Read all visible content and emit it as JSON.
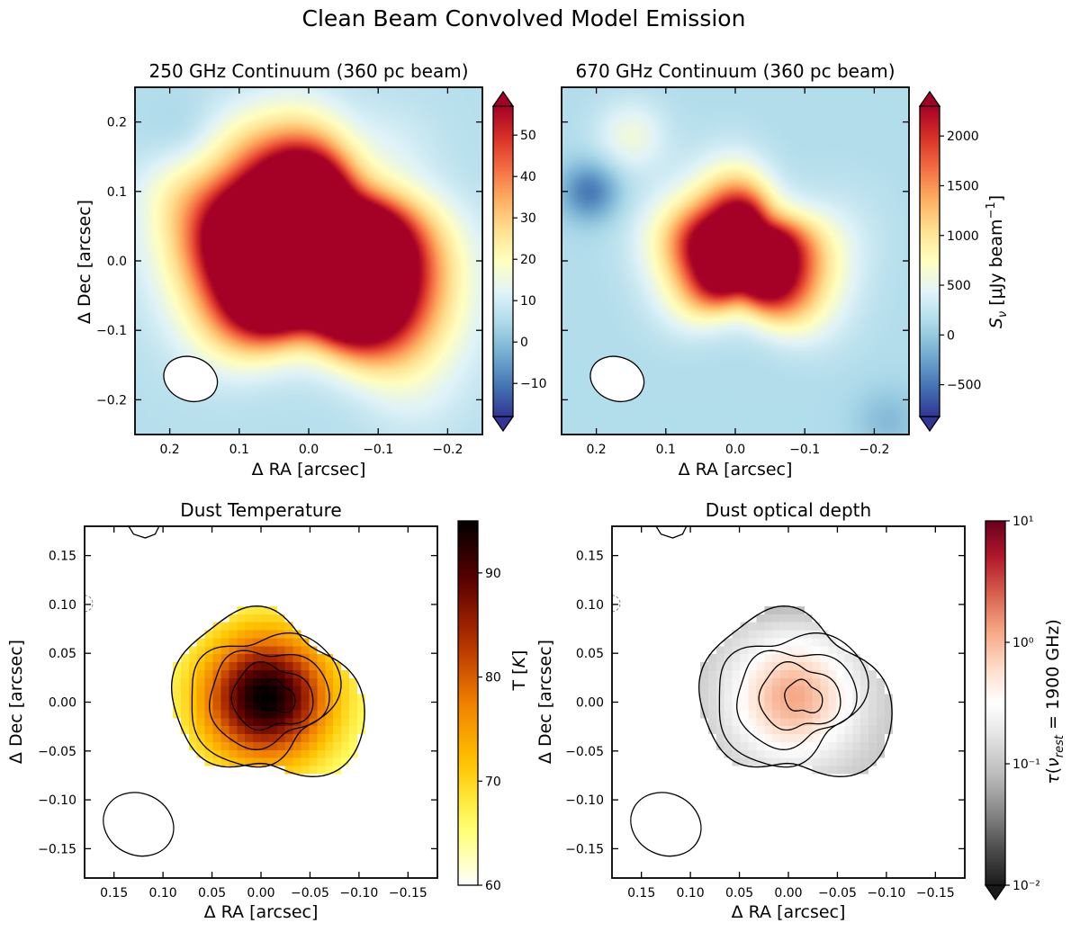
{
  "figure": {
    "suptitle": "Clean Beam Convolved Model Emission"
  },
  "colors": {
    "rdylbu_r": [
      "#313695",
      "#4575b4",
      "#74add1",
      "#abd9e9",
      "#e0f3f8",
      "#ffffbf",
      "#fee090",
      "#fdae61",
      "#f46d43",
      "#d73027",
      "#a50026"
    ],
    "afmhot_r": [
      "#ffffff",
      "#ffff66",
      "#ffc400",
      "#f08000",
      "#b33000",
      "#5c0000",
      "#000000"
    ],
    "rdgy_r": [
      "#1a1a1a",
      "#4d4d4d",
      "#878787",
      "#bababa",
      "#e0e0e0",
      "#ffffff",
      "#fddbc7",
      "#f4a582",
      "#d6604d",
      "#b2182b",
      "#67001f"
    ]
  },
  "chart_data": [
    {
      "type": "heatmap",
      "title": "250 GHz Continuum (360 pc beam)",
      "xlabel": "Δ RA [arcsec]",
      "ylabel": "Δ Dec [arcsec]",
      "xlim": [
        0.25,
        -0.25
      ],
      "ylim": [
        -0.25,
        0.25
      ],
      "xticks": [
        0.2,
        0.1,
        0.0,
        -0.1,
        -0.2
      ],
      "xtick_labels": [
        "0.2",
        "0.1",
        "0.0",
        "−0.1",
        "−0.2"
      ],
      "yticks": [
        0.2,
        0.1,
        0.0,
        -0.1,
        -0.2
      ],
      "ytick_labels": [
        "0.2",
        "0.1",
        "0.0",
        "−0.1",
        "−0.2"
      ],
      "colormap": "RdYlBu_r",
      "vmin": -18,
      "vmax": 57,
      "colorbar_extend": "both",
      "colorbar_ticks": [
        -10,
        0,
        10,
        20,
        30,
        40,
        50
      ],
      "colorbar_tick_labels": [
        "−10",
        "0",
        "10",
        "20",
        "30",
        "40",
        "50"
      ],
      "colorbar_label": "",
      "source": {
        "x": 0.0,
        "y": 0.01,
        "peak": 200,
        "sigma": 0.085,
        "fwhm_scale": 1.0
      },
      "background": 6,
      "blobs": [
        {
          "x": 0.19,
          "y": 0.1,
          "amp": 6,
          "sigma": 0.04
        },
        {
          "x": 0.1,
          "y": 0.17,
          "amp": 5,
          "sigma": 0.04
        },
        {
          "x": -0.12,
          "y": 0.16,
          "amp": 4,
          "sigma": 0.05
        },
        {
          "x": 0.18,
          "y": 0.18,
          "amp": -3,
          "sigma": 0.04
        },
        {
          "x": -0.15,
          "y": -0.2,
          "amp": 3,
          "sigma": 0.05
        }
      ],
      "beam": {
        "x": 0.17,
        "y": -0.17,
        "major_arcsec": 0.075,
        "minor_arcsec": 0.06,
        "angle_deg": -20
      }
    },
    {
      "type": "heatmap",
      "title": "670 GHz Continuum (360 pc beam)",
      "xlabel": "Δ RA [arcsec]",
      "ylabel": "",
      "xlim": [
        0.25,
        -0.25
      ],
      "ylim": [
        -0.25,
        0.25
      ],
      "xticks": [
        0.2,
        0.1,
        0.0,
        -0.1,
        -0.2
      ],
      "xtick_labels": [
        "0.2",
        "0.1",
        "0.0",
        "−0.1",
        "−0.2"
      ],
      "yticks": [
        0.2,
        0.1,
        0.0,
        -0.1,
        -0.2
      ],
      "ytick_labels": [],
      "colormap": "RdYlBu_r",
      "vmin": -820,
      "vmax": 2300,
      "colorbar_extend": "both",
      "colorbar_ticks": [
        -500,
        0,
        500,
        1000,
        1500,
        2000
      ],
      "colorbar_tick_labels": [
        "−500",
        "0",
        "500",
        "1000",
        "1500",
        "2000"
      ],
      "colorbar_label": "S_ν [μJy beam⁻¹]",
      "source": {
        "x": -0.01,
        "y": 0.01,
        "peak": 4200,
        "sigma": 0.06,
        "fwhm_scale": 1.0
      },
      "background": 160,
      "blobs": [
        {
          "x": 0.15,
          "y": 0.18,
          "amp": 420,
          "sigma": 0.035
        },
        {
          "x": 0.21,
          "y": 0.1,
          "amp": -650,
          "sigma": 0.03
        },
        {
          "x": -0.22,
          "y": -0.23,
          "amp": -250,
          "sigma": 0.035
        },
        {
          "x": -0.15,
          "y": 0.05,
          "amp": 120,
          "sigma": 0.05
        }
      ],
      "beam": {
        "x": 0.17,
        "y": -0.17,
        "major_arcsec": 0.075,
        "minor_arcsec": 0.06,
        "angle_deg": -20
      }
    },
    {
      "type": "heatmap",
      "title": "Dust Temperature",
      "xlabel": "Δ RA [arcsec]",
      "ylabel": "Δ Dec [arcsec]",
      "xlim": [
        0.18,
        -0.18
      ],
      "ylim": [
        -0.18,
        0.18
      ],
      "xticks": [
        0.15,
        0.1,
        0.05,
        0.0,
        -0.05,
        -0.1,
        -0.15
      ],
      "xtick_labels": [
        "0.15",
        "0.10",
        "0.05",
        "0.00",
        "−0.05",
        "−0.10",
        "−0.15"
      ],
      "yticks": [
        0.15,
        0.1,
        0.05,
        0.0,
        -0.05,
        -0.1,
        -0.15
      ],
      "ytick_labels": [
        "0.15",
        "0.10",
        "0.05",
        "0.00",
        "−0.05",
        "−0.10",
        "−0.15"
      ],
      "colormap": "afmhot_r",
      "scale": "linear",
      "vmin": 60,
      "vmax": 95,
      "colorbar_extend": "neither",
      "colorbar_ticks": [
        60,
        70,
        80,
        90
      ],
      "colorbar_tick_labels": [
        "60",
        "70",
        "80",
        "90"
      ],
      "colorbar_label": "T [K]",
      "peak_value": 95,
      "edge_value": 64,
      "contour_levels": [
        0.014,
        0.035,
        0.063,
        0.1
      ],
      "beam": {
        "x": 0.125,
        "y": -0.125,
        "major_arcsec": 0.07,
        "minor_arcsec": 0.06,
        "angle_deg": -25
      }
    },
    {
      "type": "heatmap",
      "title": "Dust optical depth",
      "xlabel": "Δ RA [arcsec]",
      "ylabel": "Δ Dec [arcsec]",
      "xlim": [
        0.18,
        -0.18
      ],
      "ylim": [
        -0.18,
        0.18
      ],
      "xticks": [
        0.15,
        0.1,
        0.05,
        0.0,
        -0.05,
        -0.1,
        -0.15
      ],
      "xtick_labels": [
        "0.15",
        "0.10",
        "0.05",
        "0.00",
        "−0.05",
        "−0.10",
        "−0.15"
      ],
      "yticks": [
        0.15,
        0.1,
        0.05,
        0.0,
        -0.05,
        -0.1,
        -0.15
      ],
      "ytick_labels": [
        "0.15",
        "0.10",
        "0.05",
        "0.00",
        "−0.05",
        "−0.10",
        "−0.15"
      ],
      "colormap": "RdGy_r",
      "scale": "log",
      "vmin": 0.01,
      "vmax": 10,
      "colorbar_extend": "min",
      "colorbar_ticks": [
        0.01,
        0.1,
        1,
        10
      ],
      "colorbar_tick_labels": [
        "10⁻²",
        "10⁻¹",
        "10⁰",
        "10¹"
      ],
      "colorbar_label": "τ(ν_rest = 1900 GHz)",
      "peak_value": 1.2,
      "edge_value": 0.09,
      "contour_levels": [
        0.014,
        0.035,
        0.063,
        0.1
      ],
      "beam": {
        "x": 0.125,
        "y": -0.125,
        "major_arcsec": 0.07,
        "minor_arcsec": 0.06,
        "angle_deg": -25
      }
    }
  ]
}
